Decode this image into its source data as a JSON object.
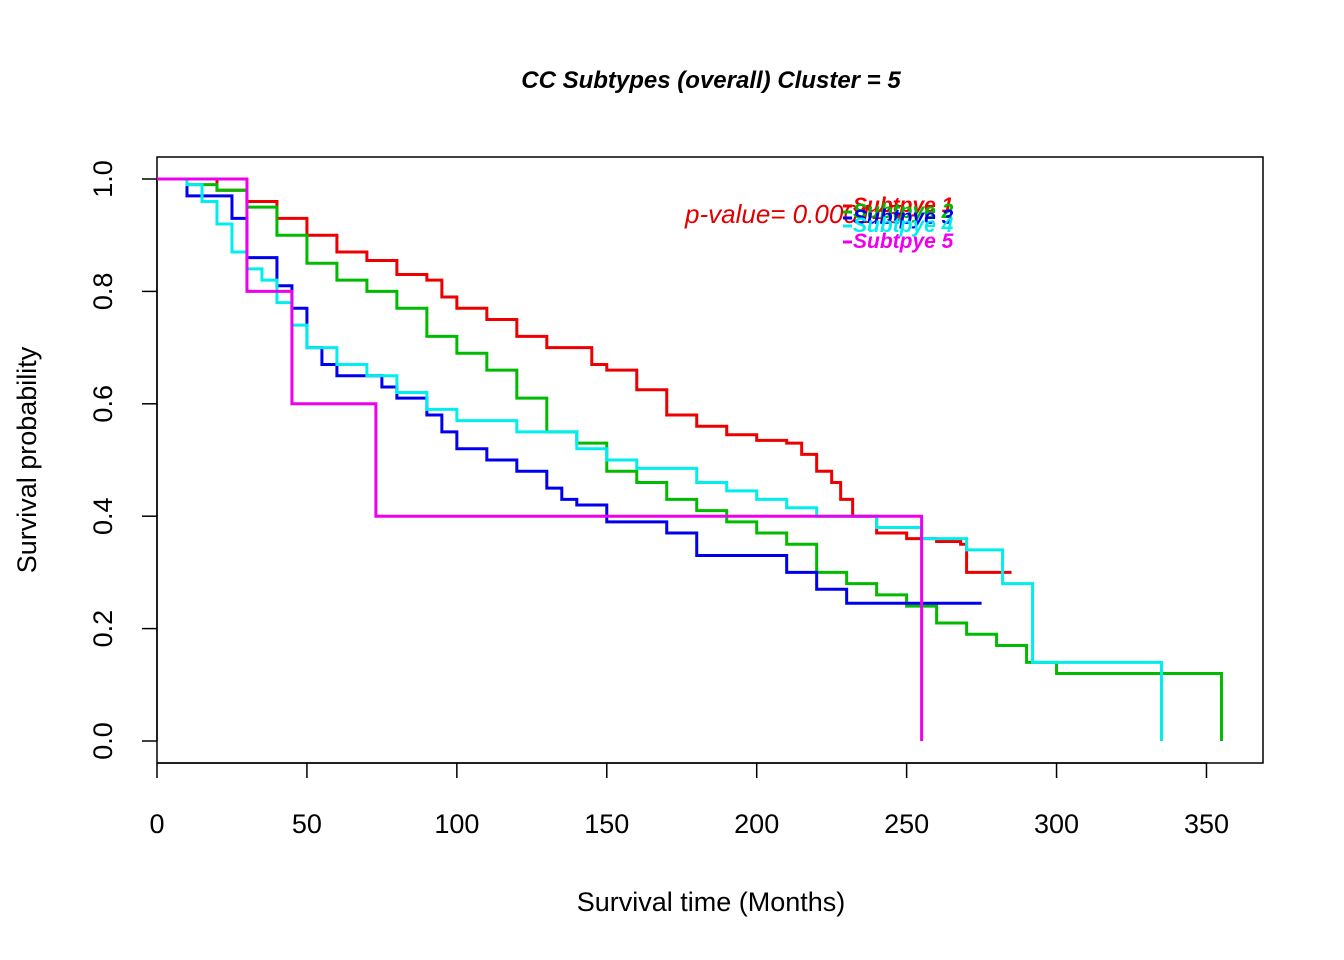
{
  "chart_data": {
    "type": "line",
    "title": "CC Subtypes (overall) Cluster = 5",
    "xlabel": "Survival time (Months)",
    "ylabel": "Survival probability",
    "xlim": [
      0,
      360
    ],
    "ylim": [
      0,
      1.0
    ],
    "xticks": [
      "0",
      "50",
      "100",
      "150",
      "200",
      "250",
      "300",
      "350"
    ],
    "yticks": [
      "0.0",
      "0.2",
      "0.4",
      "0.6",
      "0.8",
      "1.0"
    ],
    "annotation": {
      "text": "p-value= 0.000145",
      "color": "#e00000"
    },
    "legend": {
      "placement": "top-right"
    },
    "series": [
      {
        "name": "Subtpye 1",
        "color": "#ee0000",
        "points": [
          [
            0,
            1.0
          ],
          [
            20,
            0.98
          ],
          [
            30,
            0.96
          ],
          [
            40,
            0.93
          ],
          [
            50,
            0.9
          ],
          [
            60,
            0.87
          ],
          [
            70,
            0.855
          ],
          [
            80,
            0.83
          ],
          [
            90,
            0.82
          ],
          [
            95,
            0.79
          ],
          [
            100,
            0.77
          ],
          [
            110,
            0.75
          ],
          [
            120,
            0.72
          ],
          [
            130,
            0.7
          ],
          [
            145,
            0.67
          ],
          [
            150,
            0.66
          ],
          [
            160,
            0.625
          ],
          [
            170,
            0.58
          ],
          [
            180,
            0.56
          ],
          [
            190,
            0.545
          ],
          [
            200,
            0.535
          ],
          [
            210,
            0.53
          ],
          [
            215,
            0.51
          ],
          [
            220,
            0.48
          ],
          [
            225,
            0.46
          ],
          [
            228,
            0.43
          ],
          [
            232,
            0.4
          ],
          [
            240,
            0.37
          ],
          [
            250,
            0.36
          ],
          [
            260,
            0.355
          ],
          [
            268,
            0.35
          ],
          [
            270,
            0.3
          ],
          [
            285,
            0.3
          ]
        ]
      },
      {
        "name": "Subtpye 2",
        "color": "#00bb00",
        "points": [
          [
            0,
            1.0
          ],
          [
            10,
            0.99
          ],
          [
            20,
            0.98
          ],
          [
            30,
            0.95
          ],
          [
            40,
            0.9
          ],
          [
            50,
            0.85
          ],
          [
            60,
            0.82
          ],
          [
            70,
            0.8
          ],
          [
            80,
            0.77
          ],
          [
            90,
            0.72
          ],
          [
            100,
            0.69
          ],
          [
            110,
            0.66
          ],
          [
            120,
            0.61
          ],
          [
            130,
            0.55
          ],
          [
            140,
            0.53
          ],
          [
            150,
            0.48
          ],
          [
            160,
            0.46
          ],
          [
            170,
            0.43
          ],
          [
            180,
            0.41
          ],
          [
            190,
            0.39
          ],
          [
            200,
            0.37
          ],
          [
            210,
            0.35
          ],
          [
            220,
            0.3
          ],
          [
            230,
            0.28
          ],
          [
            240,
            0.26
          ],
          [
            250,
            0.24
          ],
          [
            260,
            0.21
          ],
          [
            270,
            0.19
          ],
          [
            280,
            0.17
          ],
          [
            290,
            0.14
          ],
          [
            300,
            0.12
          ],
          [
            355,
            0.12
          ],
          [
            355,
            0.0
          ]
        ]
      },
      {
        "name": "Subtpye 3",
        "color": "#0000ee",
        "points": [
          [
            0,
            1.0
          ],
          [
            10,
            0.97
          ],
          [
            20,
            0.97
          ],
          [
            25,
            0.93
          ],
          [
            30,
            0.86
          ],
          [
            35,
            0.86
          ],
          [
            40,
            0.81
          ],
          [
            45,
            0.77
          ],
          [
            50,
            0.7
          ],
          [
            55,
            0.67
          ],
          [
            60,
            0.65
          ],
          [
            75,
            0.63
          ],
          [
            80,
            0.61
          ],
          [
            90,
            0.58
          ],
          [
            95,
            0.55
          ],
          [
            100,
            0.52
          ],
          [
            110,
            0.5
          ],
          [
            120,
            0.48
          ],
          [
            130,
            0.45
          ],
          [
            135,
            0.43
          ],
          [
            140,
            0.42
          ],
          [
            150,
            0.39
          ],
          [
            170,
            0.37
          ],
          [
            180,
            0.33
          ],
          [
            200,
            0.33
          ],
          [
            210,
            0.3
          ],
          [
            220,
            0.27
          ],
          [
            230,
            0.245
          ],
          [
            275,
            0.245
          ]
        ]
      },
      {
        "name": "Subtpye 4",
        "color": "#00eeee",
        "points": [
          [
            0,
            1.0
          ],
          [
            10,
            0.99
          ],
          [
            15,
            0.96
          ],
          [
            20,
            0.92
          ],
          [
            25,
            0.87
          ],
          [
            30,
            0.84
          ],
          [
            35,
            0.82
          ],
          [
            40,
            0.78
          ],
          [
            45,
            0.74
          ],
          [
            50,
            0.7
          ],
          [
            60,
            0.67
          ],
          [
            70,
            0.65
          ],
          [
            80,
            0.62
          ],
          [
            90,
            0.59
          ],
          [
            100,
            0.57
          ],
          [
            120,
            0.55
          ],
          [
            140,
            0.52
          ],
          [
            150,
            0.5
          ],
          [
            160,
            0.485
          ],
          [
            180,
            0.46
          ],
          [
            190,
            0.445
          ],
          [
            200,
            0.43
          ],
          [
            210,
            0.415
          ],
          [
            220,
            0.4
          ],
          [
            240,
            0.38
          ],
          [
            255,
            0.36
          ],
          [
            270,
            0.34
          ],
          [
            282,
            0.34
          ],
          [
            282,
            0.28
          ],
          [
            292,
            0.28
          ],
          [
            292,
            0.14
          ],
          [
            335,
            0.14
          ],
          [
            335,
            0.0
          ]
        ]
      },
      {
        "name": "Subtpye 5",
        "color": "#ee00ee",
        "points": [
          [
            0,
            1.0
          ],
          [
            30,
            1.0
          ],
          [
            30,
            0.8
          ],
          [
            45,
            0.8
          ],
          [
            45,
            0.6
          ],
          [
            73,
            0.6
          ],
          [
            73,
            0.4
          ],
          [
            255,
            0.4
          ],
          [
            255,
            0.0
          ]
        ]
      }
    ]
  }
}
